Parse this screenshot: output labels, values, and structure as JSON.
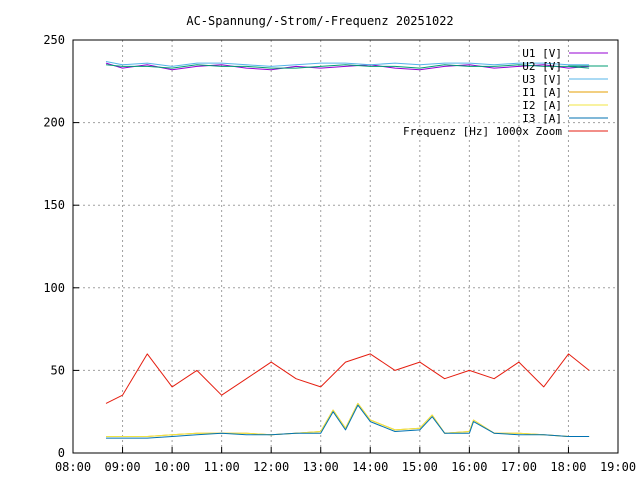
{
  "chart_data": {
    "type": "line",
    "title": "AC-Spannung/-Strom/-Frequenz 20251022",
    "xlabel": "",
    "ylabel": "",
    "xlim": [
      "08:00",
      "19:00"
    ],
    "ylim": [
      0,
      250
    ],
    "x_ticks": [
      "08:00",
      "09:00",
      "10:00",
      "11:00",
      "12:00",
      "13:00",
      "14:00",
      "15:00",
      "16:00",
      "17:00",
      "18:00",
      "19:00"
    ],
    "y_ticks": [
      0,
      50,
      100,
      150,
      200,
      250
    ],
    "grid": true,
    "legend_position": "top-right",
    "series": [
      {
        "name": "U1 [V]",
        "color": "#9400d3"
      },
      {
        "name": "U2 [V]",
        "color": "#009e73"
      },
      {
        "name": "U3 [V]",
        "color": "#56b4e9"
      },
      {
        "name": "I1 [A]",
        "color": "#e69f00"
      },
      {
        "name": "I2 [A]",
        "color": "#f0e442"
      },
      {
        "name": "I3 [A]",
        "color": "#0072b2"
      },
      {
        "name": "Frequenz [Hz] 1000x Zoom",
        "color": "#e51e10"
      }
    ],
    "voltage_points": {
      "x": [
        "08:40",
        "09:00",
        "09:30",
        "10:00",
        "10:30",
        "11:00",
        "11:30",
        "12:00",
        "12:30",
        "13:00",
        "13:30",
        "14:00",
        "14:30",
        "15:00",
        "15:30",
        "16:00",
        "16:30",
        "17:00",
        "17:30",
        "18:00",
        "18:25"
      ],
      "U1": [
        236,
        233,
        235,
        232,
        234,
        235,
        233,
        232,
        234,
        233,
        234,
        235,
        233,
        232,
        234,
        235,
        233,
        234,
        235,
        233,
        234
      ],
      "U2": [
        235,
        234,
        234,
        233,
        235,
        234,
        234,
        233,
        233,
        234,
        235,
        234,
        234,
        233,
        235,
        234,
        234,
        235,
        234,
        234,
        233
      ],
      "U3": [
        237,
        235,
        236,
        234,
        236,
        236,
        235,
        234,
        235,
        236,
        236,
        235,
        236,
        235,
        236,
        236,
        235,
        236,
        236,
        235,
        235
      ]
    },
    "current_points": {
      "x": [
        "08:40",
        "09:00",
        "09:30",
        "10:00",
        "10:30",
        "11:00",
        "11:30",
        "12:00",
        "12:30",
        "13:00",
        "13:15",
        "13:30",
        "13:45",
        "14:00",
        "14:30",
        "15:00",
        "15:15",
        "15:30",
        "16:00",
        "16:05",
        "16:30",
        "17:00",
        "17:30",
        "18:00",
        "18:25"
      ],
      "I1": [
        10,
        10,
        10,
        11,
        12,
        12,
        12,
        11,
        12,
        13,
        26,
        15,
        30,
        20,
        14,
        15,
        23,
        12,
        13,
        20,
        12,
        12,
        11,
        10,
        10
      ],
      "I2": [
        10,
        10,
        10,
        11,
        12,
        12,
        12,
        11,
        12,
        13,
        26,
        15,
        30,
        20,
        14,
        15,
        23,
        12,
        13,
        20,
        12,
        12,
        11,
        10,
        10
      ],
      "I3": [
        9,
        9,
        9,
        10,
        11,
        12,
        11,
        11,
        12,
        12,
        25,
        14,
        29,
        19,
        13,
        14,
        22,
        12,
        12,
        19,
        12,
        11,
        11,
        10,
        10
      ]
    },
    "frequency_points": {
      "x": [
        "08:40",
        "09:00",
        "09:30",
        "10:00",
        "10:30",
        "11:00",
        "11:30",
        "12:00",
        "12:30",
        "13:00",
        "13:30",
        "14:00",
        "14:30",
        "15:00",
        "15:30",
        "16:00",
        "16:30",
        "17:00",
        "17:30",
        "18:00",
        "18:25"
      ],
      "y": [
        30,
        35,
        60,
        40,
        50,
        35,
        45,
        55,
        45,
        40,
        55,
        60,
        50,
        55,
        45,
        50,
        45,
        55,
        40,
        60,
        50
      ]
    }
  }
}
